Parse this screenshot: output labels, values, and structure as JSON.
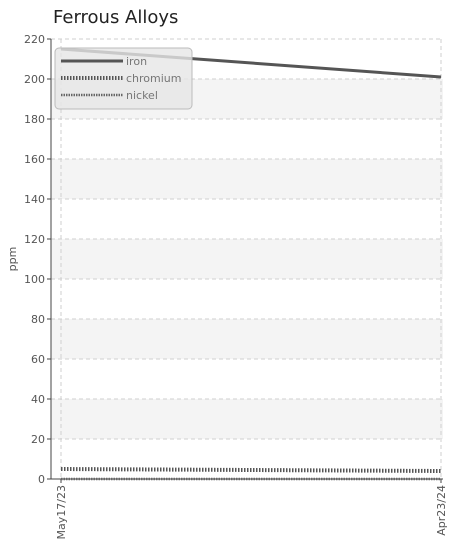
{
  "chart_data": {
    "type": "line",
    "title": "Ferrous Alloys",
    "xlabel": "",
    "ylabel": "ppm",
    "x": [
      "May17/23",
      "Apr23/24"
    ],
    "ylim": [
      0,
      220
    ],
    "yticks": [
      0,
      20,
      40,
      60,
      80,
      100,
      120,
      140,
      160,
      180,
      200,
      220
    ],
    "grid": true,
    "legend_position": "top-left",
    "series": [
      {
        "name": "iron",
        "values": [
          215,
          201
        ],
        "color": "#555555",
        "style": "solid"
      },
      {
        "name": "chromium",
        "values": [
          5,
          4
        ],
        "color": "#555555",
        "style": "dotted-thick"
      },
      {
        "name": "nickel",
        "values": [
          0,
          0
        ],
        "color": "#666666",
        "style": "dotted-thin"
      }
    ]
  }
}
